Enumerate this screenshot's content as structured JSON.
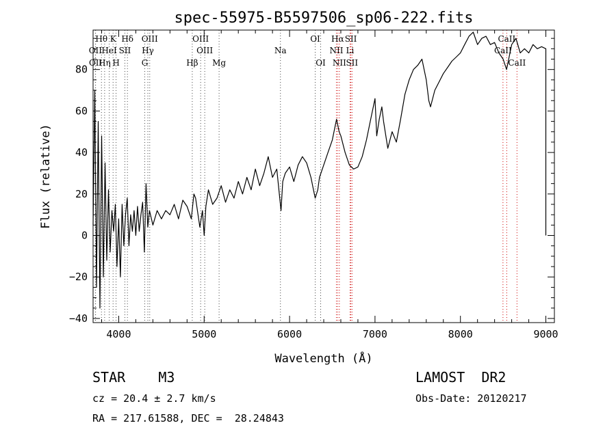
{
  "chart_data": {
    "type": "line",
    "title": "spec-55975-B5597506_sp06-222.fits",
    "xlabel": "Wavelength (Å)",
    "ylabel": "Flux (relative)",
    "xlim": [
      3700,
      9100
    ],
    "ylim": [
      -42,
      99
    ],
    "x_ticks": [
      4000,
      5000,
      6000,
      7000,
      8000,
      9000
    ],
    "y_ticks": [
      -40,
      -20,
      0,
      20,
      40,
      60,
      80
    ],
    "grid": false,
    "series": [
      {
        "color": "#000000",
        "points": [
          [
            3700,
            5
          ],
          [
            3720,
            70
          ],
          [
            3740,
            -25
          ],
          [
            3760,
            55
          ],
          [
            3780,
            -35
          ],
          [
            3800,
            48
          ],
          [
            3820,
            -20
          ],
          [
            3840,
            35
          ],
          [
            3860,
            -12
          ],
          [
            3880,
            22
          ],
          [
            3900,
            -8
          ],
          [
            3920,
            12
          ],
          [
            3940,
            2
          ],
          [
            3960,
            15
          ],
          [
            3980,
            -15
          ],
          [
            4000,
            8
          ],
          [
            4020,
            -20
          ],
          [
            4040,
            15
          ],
          [
            4060,
            -5
          ],
          [
            4080,
            10
          ],
          [
            4100,
            18
          ],
          [
            4120,
            -5
          ],
          [
            4140,
            10
          ],
          [
            4160,
            2
          ],
          [
            4180,
            12
          ],
          [
            4200,
            0
          ],
          [
            4220,
            14
          ],
          [
            4240,
            2
          ],
          [
            4260,
            10
          ],
          [
            4280,
            16
          ],
          [
            4300,
            -8
          ],
          [
            4320,
            25
          ],
          [
            4340,
            4
          ],
          [
            4360,
            12
          ],
          [
            4400,
            5
          ],
          [
            4450,
            12
          ],
          [
            4500,
            8
          ],
          [
            4550,
            12
          ],
          [
            4600,
            10
          ],
          [
            4650,
            15
          ],
          [
            4700,
            8
          ],
          [
            4750,
            17
          ],
          [
            4800,
            14
          ],
          [
            4850,
            8
          ],
          [
            4880,
            20
          ],
          [
            4900,
            18
          ],
          [
            4950,
            4
          ],
          [
            4980,
            12
          ],
          [
            5000,
            0
          ],
          [
            5020,
            14
          ],
          [
            5050,
            22
          ],
          [
            5100,
            15
          ],
          [
            5150,
            18
          ],
          [
            5200,
            24
          ],
          [
            5250,
            16
          ],
          [
            5300,
            22
          ],
          [
            5350,
            18
          ],
          [
            5400,
            26
          ],
          [
            5450,
            20
          ],
          [
            5500,
            28
          ],
          [
            5550,
            22
          ],
          [
            5600,
            32
          ],
          [
            5650,
            24
          ],
          [
            5700,
            30
          ],
          [
            5750,
            38
          ],
          [
            5800,
            28
          ],
          [
            5850,
            32
          ],
          [
            5880,
            20
          ],
          [
            5900,
            12
          ],
          [
            5920,
            26
          ],
          [
            5950,
            30
          ],
          [
            6000,
            33
          ],
          [
            6050,
            26
          ],
          [
            6100,
            34
          ],
          [
            6150,
            38
          ],
          [
            6200,
            35
          ],
          [
            6250,
            28
          ],
          [
            6280,
            22
          ],
          [
            6300,
            18
          ],
          [
            6330,
            22
          ],
          [
            6350,
            28
          ],
          [
            6400,
            34
          ],
          [
            6450,
            40
          ],
          [
            6500,
            46
          ],
          [
            6550,
            56
          ],
          [
            6580,
            50
          ],
          [
            6600,
            48
          ],
          [
            6650,
            40
          ],
          [
            6700,
            34
          ],
          [
            6750,
            32
          ],
          [
            6800,
            33
          ],
          [
            6850,
            38
          ],
          [
            6900,
            46
          ],
          [
            6950,
            56
          ],
          [
            7000,
            66
          ],
          [
            7020,
            48
          ],
          [
            7050,
            56
          ],
          [
            7080,
            62
          ],
          [
            7100,
            55
          ],
          [
            7150,
            42
          ],
          [
            7200,
            50
          ],
          [
            7250,
            45
          ],
          [
            7300,
            56
          ],
          [
            7350,
            68
          ],
          [
            7400,
            75
          ],
          [
            7450,
            80
          ],
          [
            7500,
            82
          ],
          [
            7550,
            85
          ],
          [
            7600,
            75
          ],
          [
            7630,
            65
          ],
          [
            7650,
            62
          ],
          [
            7700,
            70
          ],
          [
            7750,
            74
          ],
          [
            7800,
            78
          ],
          [
            7850,
            81
          ],
          [
            7900,
            84
          ],
          [
            7950,
            86
          ],
          [
            8000,
            88
          ],
          [
            8050,
            92
          ],
          [
            8100,
            96
          ],
          [
            8150,
            98
          ],
          [
            8200,
            92
          ],
          [
            8250,
            95
          ],
          [
            8300,
            96
          ],
          [
            8350,
            92
          ],
          [
            8400,
            93
          ],
          [
            8450,
            88
          ],
          [
            8500,
            85
          ],
          [
            8540,
            80
          ],
          [
            8560,
            84
          ],
          [
            8600,
            92
          ],
          [
            8650,
            95
          ],
          [
            8700,
            88
          ],
          [
            8750,
            90
          ],
          [
            8800,
            88
          ],
          [
            8850,
            92
          ],
          [
            8900,
            90
          ],
          [
            8950,
            91
          ],
          [
            9000,
            90
          ],
          [
            9000,
            0
          ]
        ]
      }
    ],
    "lines": [
      {
        "label": "Hθ",
        "x": 3798,
        "row": 0,
        "color": "black"
      },
      {
        "label": "K",
        "x": 3934,
        "row": 0,
        "color": "black"
      },
      {
        "label": "Hδ",
        "x": 4102,
        "row": 0,
        "color": "black"
      },
      {
        "label": "OIII",
        "x": 4363,
        "row": 0,
        "color": "black"
      },
      {
        "label": "OIII",
        "x": 4959,
        "row": 0,
        "color": "black"
      },
      {
        "label": "OI",
        "x": 6300,
        "row": 0,
        "color": "black"
      },
      {
        "label": "Hα",
        "x": 6563,
        "row": 0,
        "color": "red"
      },
      {
        "label": "SII",
        "x": 6717,
        "row": 0,
        "color": "red"
      },
      {
        "label": "CaII",
        "x": 8542,
        "row": 0,
        "color": "red"
      },
      {
        "label": "OII",
        "x": 3727,
        "row": 1,
        "color": "black"
      },
      {
        "label": "HeI",
        "x": 3889,
        "row": 1,
        "color": "black"
      },
      {
        "label": "SII",
        "x": 4072,
        "row": 1,
        "color": "black"
      },
      {
        "label": "Hγ",
        "x": 4341,
        "row": 1,
        "color": "black"
      },
      {
        "label": "OIII",
        "x": 5007,
        "row": 1,
        "color": "black"
      },
      {
        "label": "Na",
        "x": 5893,
        "row": 1,
        "color": "black"
      },
      {
        "label": "NII",
        "x": 6548,
        "row": 1,
        "color": "red"
      },
      {
        "label": "Li",
        "x": 6708,
        "row": 1,
        "color": "red"
      },
      {
        "label": "CaII",
        "x": 8498,
        "row": 1,
        "color": "red"
      },
      {
        "label": "OII",
        "x": 3729,
        "row": 2,
        "color": "black"
      },
      {
        "label": "Hη",
        "x": 3835,
        "row": 2,
        "color": "black"
      },
      {
        "label": "H",
        "x": 3969,
        "row": 2,
        "color": "black"
      },
      {
        "label": "G",
        "x": 4305,
        "row": 2,
        "color": "black"
      },
      {
        "label": "Hβ",
        "x": 4861,
        "row": 2,
        "color": "black"
      },
      {
        "label": "Mg",
        "x": 5175,
        "row": 2,
        "color": "black"
      },
      {
        "label": "OI",
        "x": 6364,
        "row": 2,
        "color": "black"
      },
      {
        "label": "NII",
        "x": 6583,
        "row": 2,
        "color": "red"
      },
      {
        "label": "SII",
        "x": 6731,
        "row": 2,
        "color": "red"
      },
      {
        "label": "CaII",
        "x": 8662,
        "row": 2,
        "color": "red"
      }
    ]
  },
  "footer": {
    "object": "STAR    M3",
    "survey": "LAMOST  DR2",
    "cz": "cz = 20.4 ± 2.7 km/s",
    "obs_date": "Obs-Date: 20120217",
    "coords": "RA = 217.61588, DEC =  28.24843"
  }
}
